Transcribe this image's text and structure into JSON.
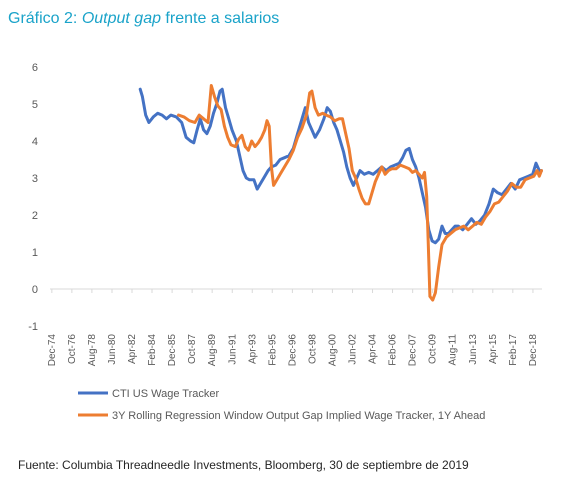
{
  "header": {
    "title_prefix": "Gráfico 2: ",
    "title_italic": "Output gap",
    "title_suffix": " frente a salarios"
  },
  "footer": {
    "source": "Fuente: Columbia Threadneedle Investments, Bloomberg, 30 de septiembre de 2019"
  },
  "colors": {
    "title": "#1aa3c9",
    "series_blue": "#4472c4",
    "series_orange": "#ed7d31",
    "axis": "#d9d9d9"
  },
  "chart_data": {
    "type": "line",
    "ylim": [
      -1,
      6
    ],
    "yticks": [
      -1,
      0,
      1,
      2,
      3,
      4,
      5,
      6
    ],
    "xlim": [
      1974.75,
      2019.75
    ],
    "xticks": [
      {
        "label": "Dec-74",
        "x": 1974.92
      },
      {
        "label": "Oct-76",
        "x": 1976.75
      },
      {
        "label": "Aug-78",
        "x": 1978.58
      },
      {
        "label": "Jun-80",
        "x": 1980.42
      },
      {
        "label": "Apr-82",
        "x": 1982.25
      },
      {
        "label": "Feb-84",
        "x": 1984.08
      },
      {
        "label": "Dec-85",
        "x": 1985.92
      },
      {
        "label": "Oct-87",
        "x": 1987.75
      },
      {
        "label": "Aug-89",
        "x": 1989.58
      },
      {
        "label": "Jun-91",
        "x": 1991.42
      },
      {
        "label": "Apr-93",
        "x": 1993.25
      },
      {
        "label": "Feb-95",
        "x": 1995.08
      },
      {
        "label": "Dec-96",
        "x": 1996.92
      },
      {
        "label": "Oct-98",
        "x": 1998.75
      },
      {
        "label": "Aug-00",
        "x": 2000.58
      },
      {
        "label": "Jun-02",
        "x": 2002.42
      },
      {
        "label": "Apr-04",
        "x": 2004.25
      },
      {
        "label": "Feb-06",
        "x": 2006.08
      },
      {
        "label": "Dec-07",
        "x": 2007.92
      },
      {
        "label": "Oct-09",
        "x": 2009.75
      },
      {
        "label": "Aug-11",
        "x": 2011.58
      },
      {
        "label": "Jun-13",
        "x": 2013.42
      },
      {
        "label": "Apr-15",
        "x": 2015.25
      },
      {
        "label": "Feb-17",
        "x": 2017.08
      },
      {
        "label": "Dec-18",
        "x": 2018.92
      }
    ],
    "legend_position": "bottom-left",
    "grid": false,
    "series": [
      {
        "name": "CTI US Wage Tracker",
        "color": "#4472c4",
        "points": [
          [
            1983.0,
            5.4
          ],
          [
            1983.2,
            5.2
          ],
          [
            1983.5,
            4.7
          ],
          [
            1983.8,
            4.5
          ],
          [
            1984.2,
            4.65
          ],
          [
            1984.6,
            4.75
          ],
          [
            1985.0,
            4.7
          ],
          [
            1985.4,
            4.6
          ],
          [
            1985.8,
            4.7
          ],
          [
            1986.3,
            4.65
          ],
          [
            1986.8,
            4.5
          ],
          [
            1987.2,
            4.1
          ],
          [
            1987.6,
            4.0
          ],
          [
            1987.9,
            3.95
          ],
          [
            1988.2,
            4.3
          ],
          [
            1988.5,
            4.6
          ],
          [
            1988.8,
            4.3
          ],
          [
            1989.1,
            4.2
          ],
          [
            1989.4,
            4.4
          ],
          [
            1989.7,
            4.75
          ],
          [
            1990.0,
            5.0
          ],
          [
            1990.3,
            5.35
          ],
          [
            1990.5,
            5.4
          ],
          [
            1990.8,
            4.9
          ],
          [
            1991.1,
            4.6
          ],
          [
            1991.4,
            4.3
          ],
          [
            1991.8,
            4.0
          ],
          [
            1992.1,
            3.6
          ],
          [
            1992.4,
            3.2
          ],
          [
            1992.7,
            3.0
          ],
          [
            1993.0,
            2.95
          ],
          [
            1993.4,
            2.95
          ],
          [
            1993.7,
            2.7
          ],
          [
            1994.0,
            2.85
          ],
          [
            1994.4,
            3.05
          ],
          [
            1994.7,
            3.2
          ],
          [
            1995.0,
            3.3
          ],
          [
            1995.4,
            3.35
          ],
          [
            1995.8,
            3.5
          ],
          [
            1996.2,
            3.55
          ],
          [
            1996.6,
            3.6
          ],
          [
            1997.0,
            3.8
          ],
          [
            1997.4,
            4.2
          ],
          [
            1997.8,
            4.6
          ],
          [
            1998.1,
            4.9
          ],
          [
            1998.4,
            4.5
          ],
          [
            1998.7,
            4.3
          ],
          [
            1999.0,
            4.1
          ],
          [
            1999.4,
            4.3
          ],
          [
            1999.8,
            4.6
          ],
          [
            2000.1,
            4.9
          ],
          [
            2000.4,
            4.8
          ],
          [
            2000.7,
            4.5
          ],
          [
            2001.0,
            4.3
          ],
          [
            2001.3,
            4.0
          ],
          [
            2001.6,
            3.7
          ],
          [
            2001.9,
            3.3
          ],
          [
            2002.2,
            3.0
          ],
          [
            2002.5,
            2.8
          ],
          [
            2002.8,
            3.0
          ],
          [
            2003.1,
            3.2
          ],
          [
            2003.5,
            3.1
          ],
          [
            2003.9,
            3.15
          ],
          [
            2004.3,
            3.1
          ],
          [
            2004.7,
            3.2
          ],
          [
            2005.1,
            3.3
          ],
          [
            2005.5,
            3.2
          ],
          [
            2005.9,
            3.3
          ],
          [
            2006.3,
            3.35
          ],
          [
            2006.7,
            3.4
          ],
          [
            2007.0,
            3.55
          ],
          [
            2007.3,
            3.75
          ],
          [
            2007.6,
            3.8
          ],
          [
            2007.9,
            3.5
          ],
          [
            2008.2,
            3.3
          ],
          [
            2008.5,
            3.0
          ],
          [
            2008.8,
            2.6
          ],
          [
            2009.1,
            2.2
          ],
          [
            2009.4,
            1.6
          ],
          [
            2009.7,
            1.3
          ],
          [
            2010.0,
            1.25
          ],
          [
            2010.3,
            1.35
          ],
          [
            2010.6,
            1.7
          ],
          [
            2010.9,
            1.5
          ],
          [
            2011.2,
            1.5
          ],
          [
            2011.5,
            1.6
          ],
          [
            2011.8,
            1.7
          ],
          [
            2012.1,
            1.7
          ],
          [
            2012.5,
            1.6
          ],
          [
            2012.9,
            1.75
          ],
          [
            2013.3,
            1.9
          ],
          [
            2013.7,
            1.75
          ],
          [
            2014.1,
            1.85
          ],
          [
            2014.5,
            2.0
          ],
          [
            2014.9,
            2.3
          ],
          [
            2015.3,
            2.7
          ],
          [
            2015.7,
            2.6
          ],
          [
            2016.1,
            2.55
          ],
          [
            2016.5,
            2.7
          ],
          [
            2016.9,
            2.85
          ],
          [
            2017.3,
            2.7
          ],
          [
            2017.7,
            2.95
          ],
          [
            2018.1,
            3.0
          ],
          [
            2018.5,
            3.05
          ],
          [
            2018.9,
            3.1
          ],
          [
            2019.2,
            3.4
          ],
          [
            2019.5,
            3.2
          ],
          [
            2019.7,
            3.2
          ]
        ]
      },
      {
        "name": "3Y Rolling Regression Window Output Gap Implied Wage Tracker, 1Y Ahead",
        "color": "#ed7d31",
        "points": [
          [
            1986.5,
            4.7
          ],
          [
            1987.0,
            4.65
          ],
          [
            1987.5,
            4.55
          ],
          [
            1988.0,
            4.5
          ],
          [
            1988.4,
            4.7
          ],
          [
            1988.8,
            4.6
          ],
          [
            1989.2,
            4.5
          ],
          [
            1989.5,
            5.5
          ],
          [
            1989.8,
            5.2
          ],
          [
            1990.1,
            4.95
          ],
          [
            1990.4,
            4.85
          ],
          [
            1990.7,
            4.4
          ],
          [
            1991.0,
            4.1
          ],
          [
            1991.3,
            3.9
          ],
          [
            1991.7,
            3.85
          ],
          [
            1992.0,
            4.05
          ],
          [
            1992.3,
            4.15
          ],
          [
            1992.6,
            3.85
          ],
          [
            1992.9,
            3.75
          ],
          [
            1993.2,
            4.0
          ],
          [
            1993.5,
            3.85
          ],
          [
            1993.8,
            3.95
          ],
          [
            1994.1,
            4.1
          ],
          [
            1994.4,
            4.3
          ],
          [
            1994.6,
            4.55
          ],
          [
            1994.8,
            4.4
          ],
          [
            1995.0,
            3.3
          ],
          [
            1995.2,
            2.8
          ],
          [
            1995.5,
            2.95
          ],
          [
            1995.8,
            3.1
          ],
          [
            1996.2,
            3.3
          ],
          [
            1996.6,
            3.5
          ],
          [
            1997.0,
            3.75
          ],
          [
            1997.4,
            4.1
          ],
          [
            1997.8,
            4.35
          ],
          [
            1998.2,
            4.7
          ],
          [
            1998.5,
            5.3
          ],
          [
            1998.7,
            5.35
          ],
          [
            1999.0,
            4.9
          ],
          [
            1999.3,
            4.7
          ],
          [
            1999.7,
            4.75
          ],
          [
            2000.0,
            4.7
          ],
          [
            2000.4,
            4.65
          ],
          [
            2000.8,
            4.55
          ],
          [
            2001.2,
            4.6
          ],
          [
            2001.5,
            4.6
          ],
          [
            2001.8,
            4.2
          ],
          [
            2002.1,
            3.8
          ],
          [
            2002.4,
            3.2
          ],
          [
            2002.7,
            3.0
          ],
          [
            2003.0,
            2.7
          ],
          [
            2003.3,
            2.45
          ],
          [
            2003.6,
            2.3
          ],
          [
            2003.9,
            2.3
          ],
          [
            2004.2,
            2.6
          ],
          [
            2004.5,
            2.9
          ],
          [
            2004.8,
            3.1
          ],
          [
            2005.1,
            3.3
          ],
          [
            2005.4,
            3.1
          ],
          [
            2005.7,
            3.2
          ],
          [
            2006.0,
            3.25
          ],
          [
            2006.4,
            3.25
          ],
          [
            2006.8,
            3.35
          ],
          [
            2007.2,
            3.3
          ],
          [
            2007.6,
            3.25
          ],
          [
            2007.9,
            3.15
          ],
          [
            2008.2,
            3.2
          ],
          [
            2008.5,
            3.1
          ],
          [
            2008.8,
            3.0
          ],
          [
            2009.0,
            3.15
          ],
          [
            2009.2,
            2.5
          ],
          [
            2009.35,
            1.2
          ],
          [
            2009.5,
            -0.2
          ],
          [
            2009.75,
            -0.3
          ],
          [
            2010.0,
            -0.1
          ],
          [
            2010.3,
            0.6
          ],
          [
            2010.6,
            1.2
          ],
          [
            2011.0,
            1.4
          ],
          [
            2011.4,
            1.5
          ],
          [
            2011.8,
            1.6
          ],
          [
            2012.2,
            1.65
          ],
          [
            2012.6,
            1.7
          ],
          [
            2013.0,
            1.6
          ],
          [
            2013.4,
            1.7
          ],
          [
            2013.8,
            1.8
          ],
          [
            2014.2,
            1.75
          ],
          [
            2014.6,
            1.95
          ],
          [
            2015.0,
            2.1
          ],
          [
            2015.4,
            2.3
          ],
          [
            2015.8,
            2.35
          ],
          [
            2016.2,
            2.5
          ],
          [
            2016.6,
            2.65
          ],
          [
            2017.0,
            2.85
          ],
          [
            2017.4,
            2.75
          ],
          [
            2017.8,
            2.75
          ],
          [
            2018.2,
            2.95
          ],
          [
            2018.6,
            3.0
          ],
          [
            2019.0,
            3.05
          ],
          [
            2019.3,
            3.2
          ],
          [
            2019.5,
            3.05
          ],
          [
            2019.7,
            3.2
          ]
        ]
      }
    ]
  }
}
